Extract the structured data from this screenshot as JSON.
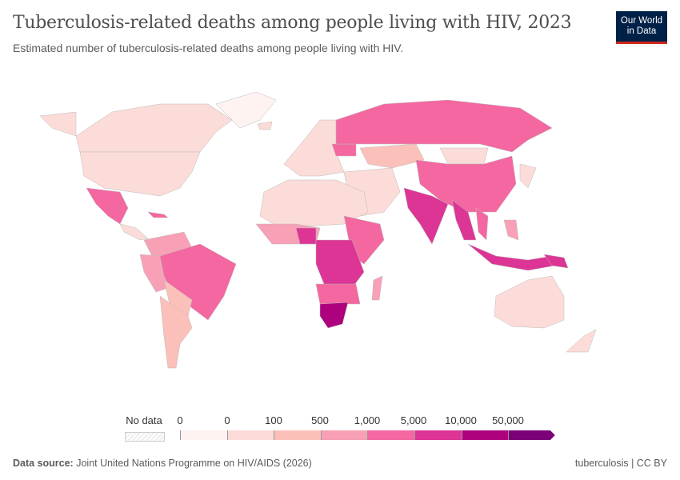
{
  "header": {
    "title": "Tuberculosis-related deaths among people living with HIV, 2023",
    "subtitle": "Estimated number of tuberculosis-related deaths among people living with HIV.",
    "logo_text": "Our World in Data"
  },
  "legend": {
    "no_data_label": "No data",
    "tick_labels": [
      "0",
      "0",
      "100",
      "500",
      "1,000",
      "5,000",
      "10,000",
      "50,000"
    ],
    "bin_colors": [
      "#fef3f1",
      "#fcdcd8",
      "#fbc0b9",
      "#f8a0b5",
      "#f467a0",
      "#dd3595",
      "#ae017e",
      "#7a0177"
    ],
    "no_data_color": "#e6e6e6"
  },
  "footer": {
    "source_label": "Data source:",
    "source": "Joint United Nations Programme on HIV/AIDS (2026)",
    "right": "tuberculosis | CC BY"
  }
}
